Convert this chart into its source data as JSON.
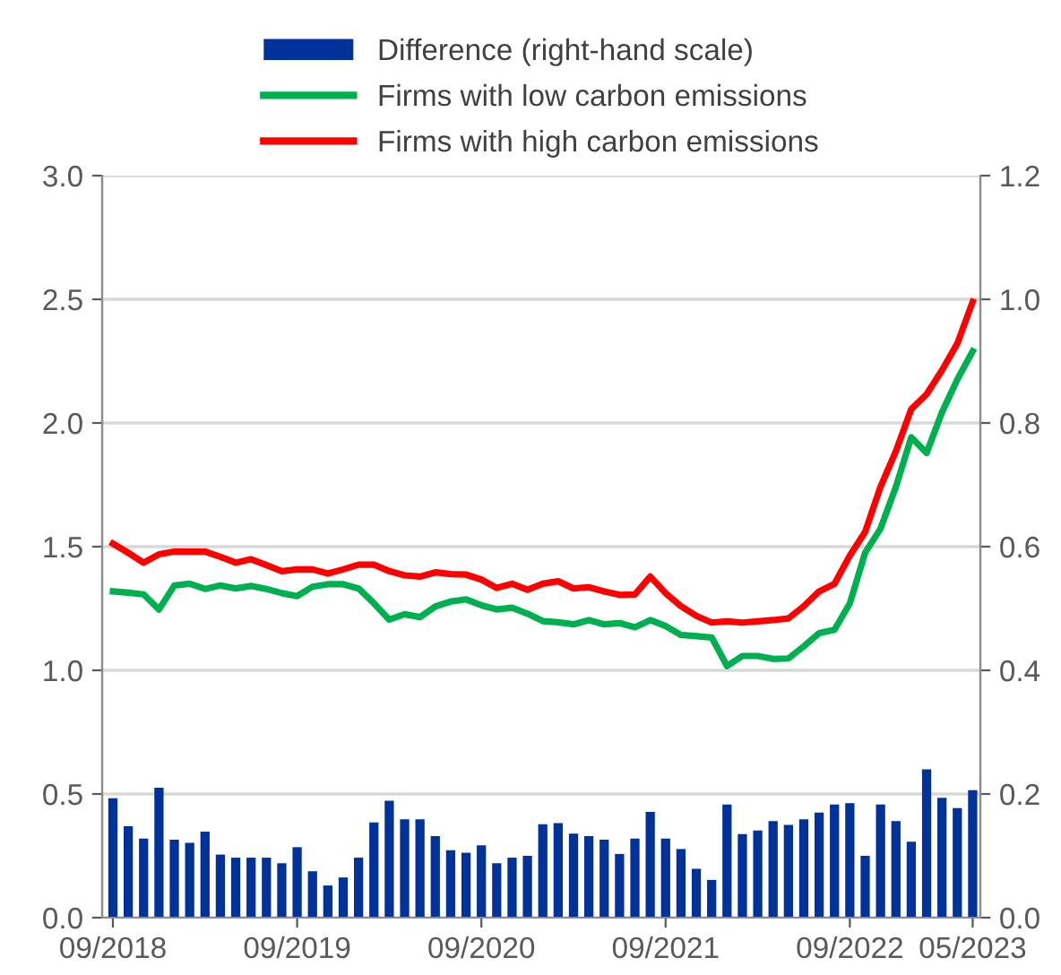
{
  "chart_data": {
    "type": "line",
    "categories": [
      "09/2018",
      null,
      null,
      null,
      null,
      null,
      null,
      null,
      null,
      null,
      null,
      null,
      "09/2019",
      null,
      null,
      null,
      null,
      null,
      null,
      null,
      null,
      null,
      null,
      null,
      "09/2020",
      null,
      null,
      null,
      null,
      null,
      null,
      null,
      null,
      null,
      null,
      null,
      "09/2021",
      null,
      null,
      null,
      null,
      null,
      null,
      null,
      null,
      null,
      null,
      null,
      "09/2022",
      null,
      null,
      null,
      null,
      null,
      null,
      null,
      "05/2023"
    ],
    "series": [
      {
        "name": "Difference (right-hand scale)",
        "type": "bar",
        "axis": "y2",
        "color": "#003299",
        "values": [
          0.193,
          0.148,
          0.128,
          0.21,
          0.126,
          0.121,
          0.139,
          0.102,
          0.097,
          0.097,
          0.097,
          0.088,
          0.114,
          0.075,
          0.052,
          0.065,
          0.097,
          0.154,
          0.189,
          0.159,
          0.159,
          0.132,
          0.109,
          0.105,
          0.117,
          0.088,
          0.097,
          0.1,
          0.151,
          0.153,
          0.136,
          0.132,
          0.126,
          0.103,
          0.128,
          0.171,
          0.128,
          0.111,
          0.079,
          0.061,
          0.183,
          0.135,
          0.141,
          0.156,
          0.15,
          0.159,
          0.17,
          0.183,
          0.185,
          0.1,
          0.183,
          0.156,
          0.123,
          0.24,
          0.194,
          0.177,
          0.206
        ]
      },
      {
        "name": "Firms with low carbon emissions",
        "color": "#00b050",
        "values": [
          1.319,
          1.314,
          1.307,
          1.246,
          1.343,
          1.35,
          1.329,
          1.343,
          1.331,
          1.341,
          1.329,
          1.312,
          1.3,
          1.338,
          1.348,
          1.348,
          1.331,
          1.271,
          1.205,
          1.227,
          1.215,
          1.258,
          1.278,
          1.287,
          1.263,
          1.246,
          1.253,
          1.229,
          1.199,
          1.194,
          1.186,
          1.203,
          1.186,
          1.191,
          1.174,
          1.203,
          1.179,
          1.143,
          1.138,
          1.133,
          1.017,
          1.058,
          1.058,
          1.046,
          1.048,
          1.097,
          1.15,
          1.164,
          1.271,
          1.476,
          1.573,
          1.742,
          1.942,
          1.879,
          2.043,
          2.176,
          2.29
        ]
      },
      {
        "name": "Firms with high carbon emissions",
        "color": "#ff0000",
        "values": [
          1.512,
          1.475,
          1.435,
          1.469,
          1.48,
          1.48,
          1.48,
          1.459,
          1.435,
          1.449,
          1.425,
          1.401,
          1.408,
          1.408,
          1.391,
          1.408,
          1.427,
          1.427,
          1.401,
          1.384,
          1.379,
          1.396,
          1.389,
          1.387,
          1.367,
          1.333,
          1.35,
          1.326,
          1.35,
          1.36,
          1.331,
          1.336,
          1.319,
          1.305,
          1.307,
          1.379,
          1.312,
          1.259,
          1.22,
          1.193,
          1.198,
          1.193,
          1.198,
          1.203,
          1.21,
          1.259,
          1.319,
          1.35,
          1.464,
          1.56,
          1.742,
          1.886,
          2.056,
          2.116,
          2.213,
          2.321,
          2.49
        ]
      }
    ],
    "ylim": [
      0,
      3.0
    ],
    "yticks": [
      {
        "value": 0,
        "label": "0.0"
      },
      {
        "value": 0.5,
        "label": "0.5"
      },
      {
        "value": 1.0,
        "label": "1.0"
      },
      {
        "value": 1.5,
        "label": "1.5"
      },
      {
        "value": 2.0,
        "label": "2.0"
      },
      {
        "value": 2.5,
        "label": "2.5"
      },
      {
        "value": 3.0,
        "label": "3.0"
      }
    ],
    "y2lim": [
      0,
      1.2
    ],
    "y2ticks": [
      {
        "value": 0,
        "label": "0.0"
      },
      {
        "value": 0.2,
        "label": "0.2"
      },
      {
        "value": 0.4,
        "label": "0.4"
      },
      {
        "value": 0.6,
        "label": "0.6"
      },
      {
        "value": 0.8,
        "label": "0.8"
      },
      {
        "value": 1.0,
        "label": "1.0"
      },
      {
        "value": 1.2,
        "label": "1.2"
      }
    ],
    "grid": true,
    "legend": "top",
    "marker": "none",
    "line_style": "solid"
  }
}
